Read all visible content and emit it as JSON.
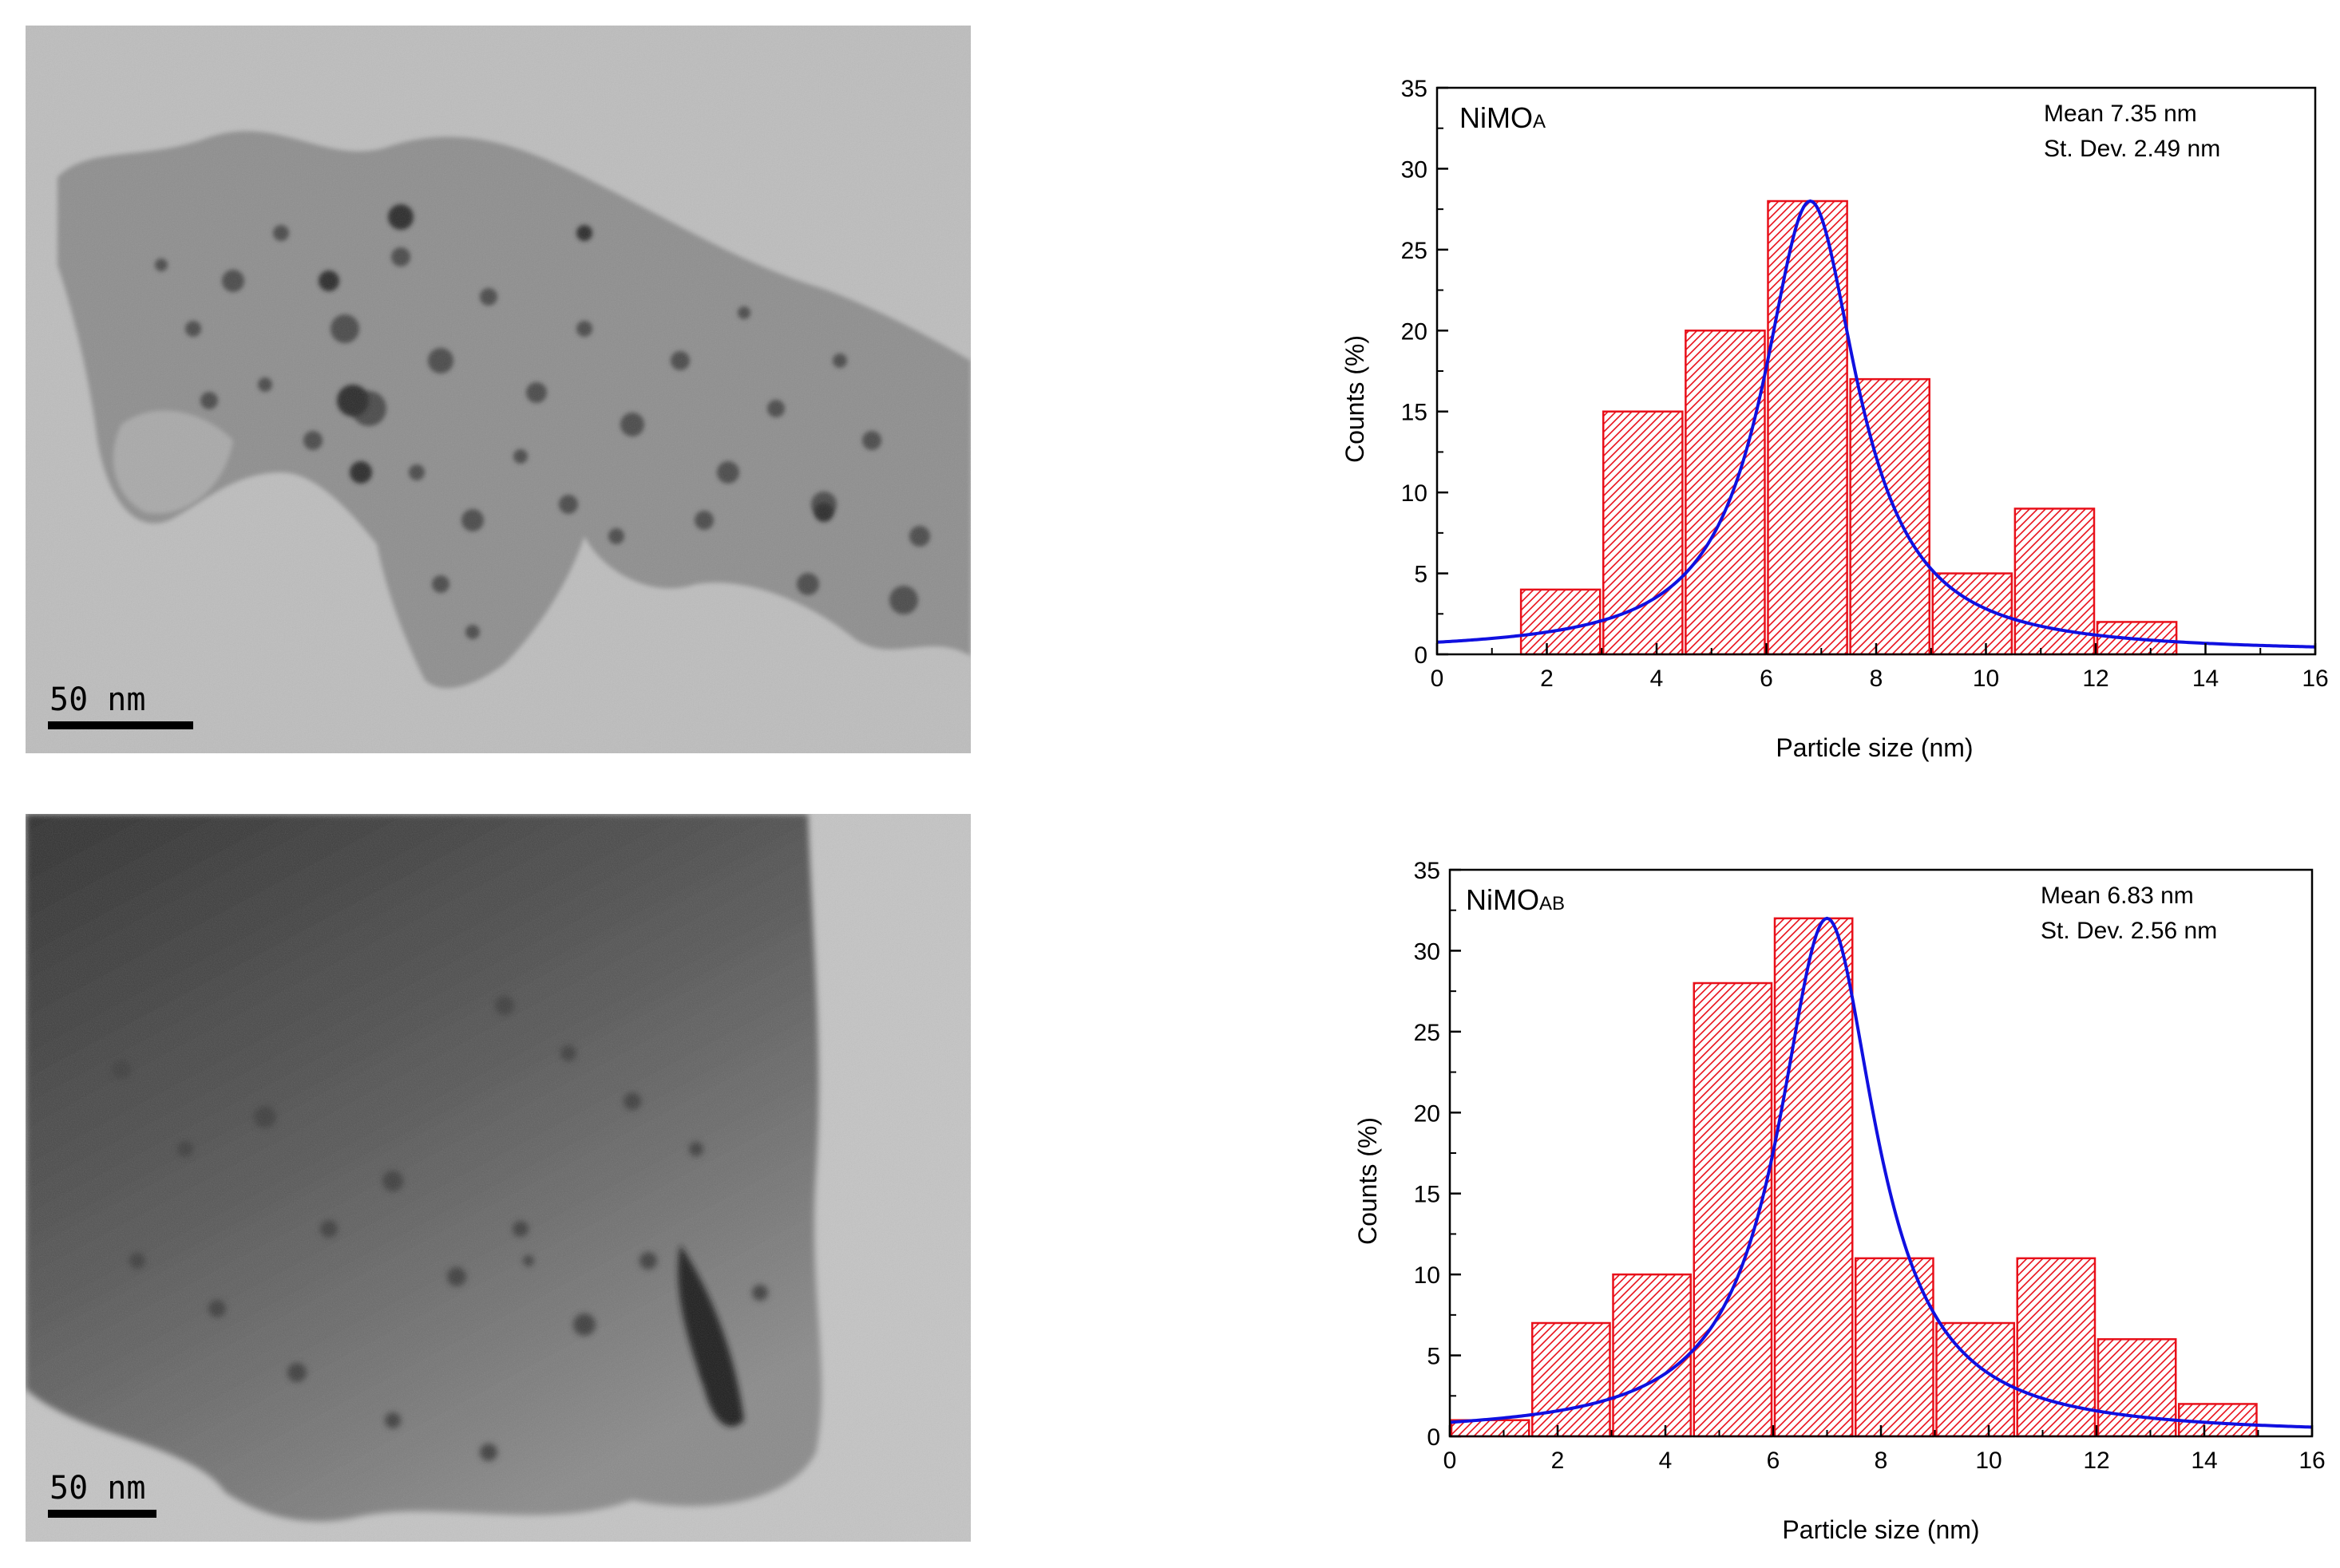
{
  "tem_images": [
    {
      "scale_bar_label": "50 nm"
    },
    {
      "scale_bar_label": "50 nm"
    }
  ],
  "colors": {
    "bar_edge": "#e8101a",
    "fit_line": "#1010e0",
    "axis": "#000000"
  },
  "chart_data": [
    {
      "type": "bar",
      "sample_label_main": "NiMO",
      "sample_label_sub": "A",
      "annotation_mean": "Mean 7.35 nm",
      "annotation_sd": "St. Dev. 2.49 nm",
      "xlabel": "Particle size (nm)",
      "ylabel": "Counts (%)",
      "xlim": [
        0,
        16
      ],
      "ylim": [
        0,
        35
      ],
      "xticks": [
        0,
        2,
        4,
        6,
        8,
        10,
        12,
        14,
        16
      ],
      "yticks": [
        0,
        5,
        10,
        15,
        20,
        25,
        30,
        35
      ],
      "bins": [
        {
          "x0": 1.5,
          "x1": 3.0,
          "value": 4
        },
        {
          "x0": 3.0,
          "x1": 4.5,
          "value": 15
        },
        {
          "x0": 4.5,
          "x1": 6.0,
          "value": 20
        },
        {
          "x0": 6.0,
          "x1": 7.5,
          "value": 28
        },
        {
          "x0": 7.5,
          "x1": 9.0,
          "value": 17
        },
        {
          "x0": 9.0,
          "x1": 10.5,
          "value": 5
        },
        {
          "x0": 10.5,
          "x1": 12.0,
          "value": 9
        },
        {
          "x0": 12.0,
          "x1": 13.5,
          "value": 2
        }
      ],
      "fit": {
        "type": "lorentzian",
        "center": 6.8,
        "half_width": 1.05,
        "peak": 28,
        "baseline": 0.1
      }
    },
    {
      "type": "bar",
      "sample_label_main": "NiMO",
      "sample_label_sub": "AB",
      "annotation_mean": "Mean 6.83 nm",
      "annotation_sd": "St. Dev. 2.56 nm",
      "xlabel": "Particle size (nm)",
      "ylabel": "Counts (%)",
      "xlim": [
        0,
        16
      ],
      "ylim": [
        0,
        35
      ],
      "xticks": [
        0,
        2,
        4,
        6,
        8,
        10,
        12,
        14,
        16
      ],
      "yticks": [
        0,
        5,
        10,
        15,
        20,
        25,
        30,
        35
      ],
      "bins": [
        {
          "x0": 0.0,
          "x1": 1.5,
          "value": 1
        },
        {
          "x0": 1.5,
          "x1": 3.0,
          "value": 7
        },
        {
          "x0": 3.0,
          "x1": 4.5,
          "value": 10
        },
        {
          "x0": 4.5,
          "x1": 6.0,
          "value": 28
        },
        {
          "x0": 6.0,
          "x1": 7.5,
          "value": 32
        },
        {
          "x0": 7.5,
          "x1": 9.0,
          "value": 11
        },
        {
          "x0": 9.0,
          "x1": 10.5,
          "value": 7
        },
        {
          "x0": 10.5,
          "x1": 12.0,
          "value": 11
        },
        {
          "x0": 12.0,
          "x1": 13.5,
          "value": 6
        },
        {
          "x0": 13.5,
          "x1": 15.0,
          "value": 2
        }
      ],
      "fit": {
        "type": "lorentzian",
        "center": 7.0,
        "half_width": 1.1,
        "peak": 32,
        "baseline": 0.1
      }
    }
  ]
}
